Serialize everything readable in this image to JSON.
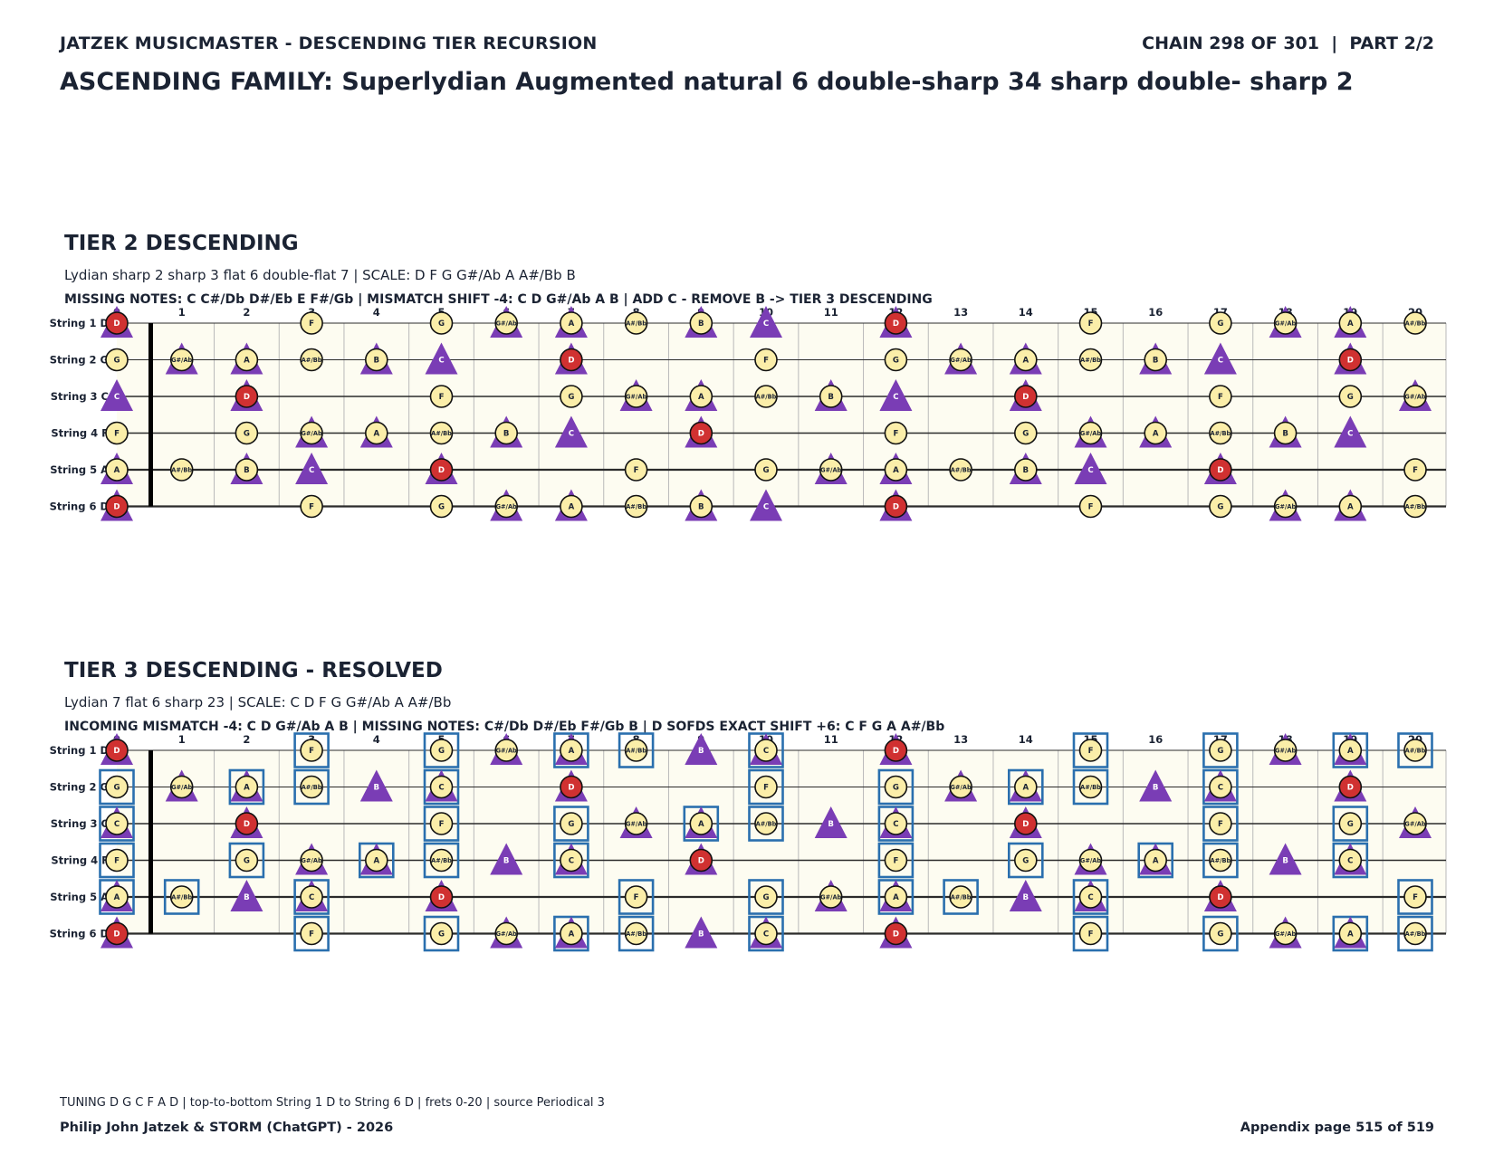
{
  "header": {
    "left": "JATZEK MUSICMASTER - DESCENDING TIER RECURSION",
    "right": "CHAIN 298 OF 301  |  PART 2/2",
    "family": "ASCENDING FAMILY: Superlydian Augmented natural 6 double-sharp 34 sharp double- sharp 2"
  },
  "colors": {
    "board_bg": "#fdfcf1",
    "note_fill": "#fbeea9",
    "root_fill": "#d03131",
    "triangle": "#7a3db5",
    "box": "#2a6fae"
  },
  "fretboard": {
    "frets": [
      "0",
      "1",
      "2",
      "3",
      "4",
      "5",
      "6",
      "7",
      "8",
      "9",
      "10",
      "11",
      "12",
      "13",
      "14",
      "15",
      "16",
      "17",
      "18",
      "19",
      "20"
    ],
    "string_labels": [
      "String 1 D",
      "String 2 G",
      "String 3 C",
      "String 4 F",
      "String 5 A",
      "String 6 D"
    ],
    "chromatic": [
      "C",
      "C#/Db",
      "D",
      "D#/Eb",
      "E",
      "F",
      "F#/Gb",
      "G",
      "G#/Ab",
      "A",
      "A#/Bb",
      "B"
    ],
    "open_notes": [
      "D",
      "G",
      "C",
      "F",
      "A",
      "D"
    ],
    "root": "D"
  },
  "tiers": [
    {
      "title": "TIER 2 DESCENDING",
      "subtitle": "Lydian sharp 2 sharp 3 flat 6 double-flat 7  |  SCALE: D F G G#/Ab A A#/Bb B",
      "info": "MISSING NOTES: C C#/Db D#/Eb E F#/Gb  |  MISMATCH SHIFT -4: C D G#/Ab A B  |  ADD C - REMOVE B -> TIER 3 DESCENDING",
      "scale": [
        "D",
        "F",
        "G",
        "G#/Ab",
        "A",
        "A#/Bb",
        "B"
      ],
      "triangles": [
        "C",
        "D",
        "G#/Ab",
        "A",
        "B"
      ],
      "boxed": []
    },
    {
      "title": "TIER 3 DESCENDING - RESOLVED",
      "subtitle": "Lydian 7 flat 6 sharp 23  |  SCALE: C D F G G#/Ab A A#/Bb",
      "info": "INCOMING MISMATCH -4: C D G#/Ab A B  |  MISSING NOTES: C#/Db D#/Eb F#/Gb B  |  D SOFDS EXACT SHIFT +6: C F G A A#/Bb",
      "scale": [
        "C",
        "D",
        "F",
        "G",
        "G#/Ab",
        "A",
        "A#/Bb"
      ],
      "triangles": [
        "C",
        "D",
        "G#/Ab",
        "A",
        "B"
      ],
      "boxed": [
        "C",
        "F",
        "G",
        "A",
        "A#/Bb"
      ]
    }
  ],
  "footer": {
    "note": "TUNING D G C F A D | top-to-bottom String 1 D to String 6 D | frets 0-20 | source Periodical 3",
    "left": "Philip John Jatzek & STORM (ChatGPT) - 2026",
    "right": "Appendix page 515 of 519"
  }
}
